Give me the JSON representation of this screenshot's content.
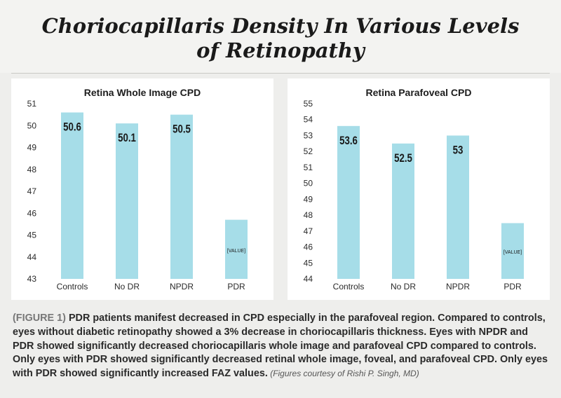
{
  "header": {
    "title_line1": "Choriocapillaris Density In Various Levels",
    "title_line2": "of Retinopathy"
  },
  "colors": {
    "bar": "#a6dde8",
    "background": "#eeeeec",
    "panel": "#ffffff",
    "text": "#1a1a1a"
  },
  "chart_data": [
    {
      "type": "bar",
      "title": "Retina Whole Image CPD",
      "categories": [
        "Controls",
        "No DR",
        "NPDR",
        "PDR"
      ],
      "values": [
        50.6,
        50.1,
        50.5,
        45.7
      ],
      "data_labels": [
        "50.6",
        "50.1",
        "50.5",
        "[VALUE]"
      ],
      "ylim": [
        43,
        51
      ],
      "yticks": [
        "43",
        "44",
        "45",
        "46",
        "47",
        "48",
        "49",
        "50",
        "51"
      ],
      "xlabel": "",
      "ylabel": "",
      "grid": false
    },
    {
      "type": "bar",
      "title": "Retina Parafoveal CPD",
      "categories": [
        "Controls",
        "No DR",
        "NPDR",
        "PDR"
      ],
      "values": [
        53.6,
        52.5,
        53,
        47.5
      ],
      "data_labels": [
        "53.6",
        "52.5",
        "53",
        "[VALUE]"
      ],
      "ylim": [
        44,
        55
      ],
      "yticks": [
        "44",
        "45",
        "46",
        "47",
        "48",
        "49",
        "50",
        "51",
        "52",
        "53",
        "54",
        "55"
      ],
      "xlabel": "",
      "ylabel": "",
      "grid": false
    }
  ],
  "caption": {
    "figure_label": "(FIGURE 1)",
    "text": " PDR patients manifest decreased in CPD especially in the parafoveal region. Compared to controls, eyes without diabetic retinopathy showed a 3% decrease in choriocapillaris thickness. Eyes with NPDR and PDR showed significantly decreased choriocapillaris whole image and parafoveal CPD compared to controls. Only eyes with PDR showed significantly decreased retinal whole image, foveal, and parafoveal CPD. Only eyes with PDR showed significantly increased FAZ values.",
    "courtesy": " (Figures courtesy of Rishi P. Singh, MD)"
  }
}
